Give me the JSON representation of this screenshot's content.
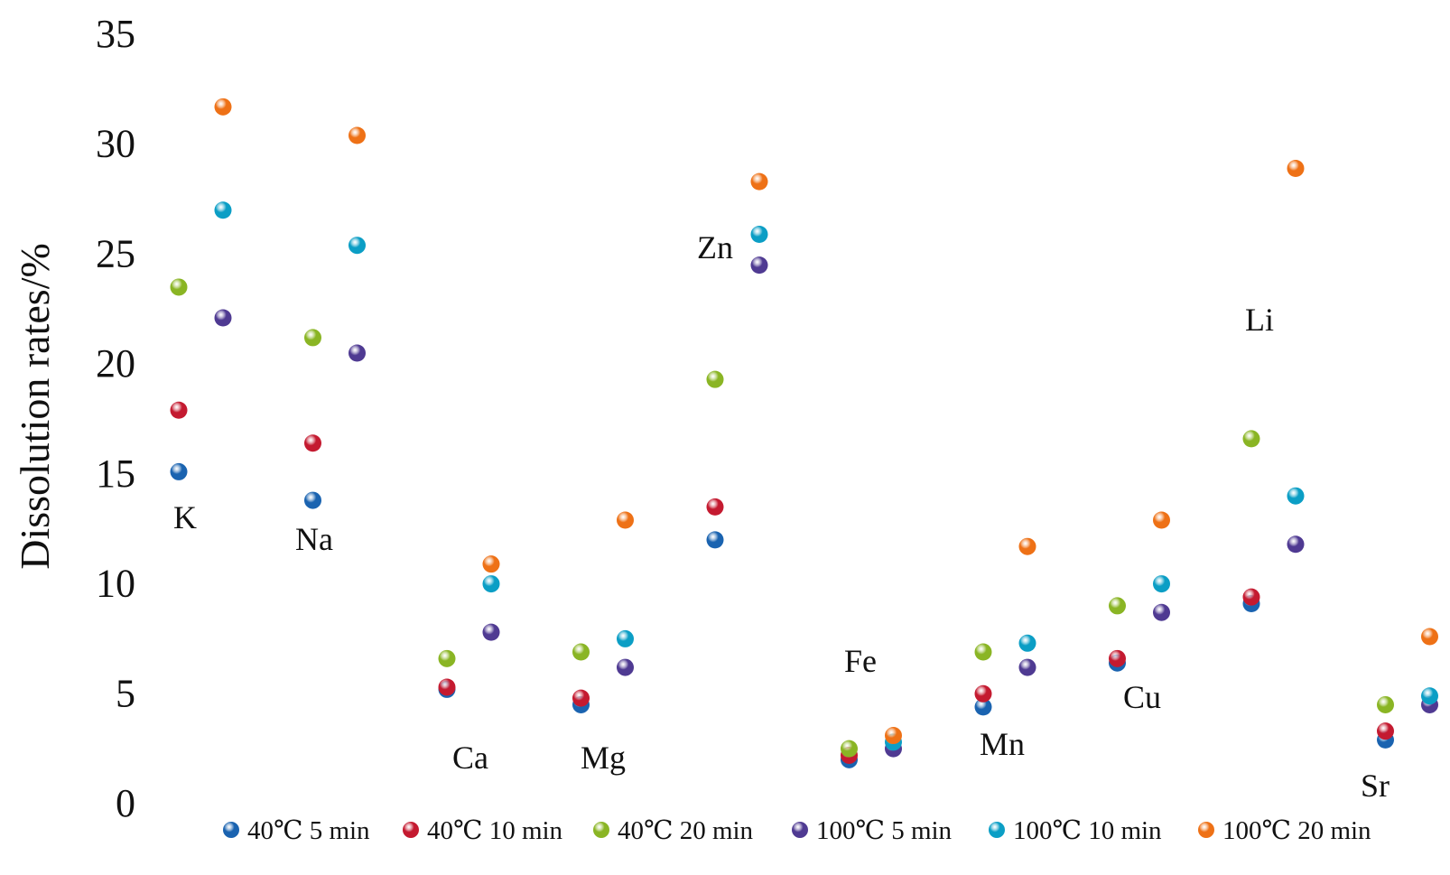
{
  "chart_data": {
    "type": "scatter",
    "title": "",
    "xlabel": "",
    "ylabel": "Dissolution rates/%",
    "ylim": [
      0,
      35
    ],
    "yticks": [
      "0",
      "5",
      "10",
      "15",
      "20",
      "25",
      "30",
      "35"
    ],
    "grid": false,
    "legend_position": "bottom",
    "elements": [
      "K",
      "Na",
      "Ca",
      "Mg",
      "Zn",
      "Fe",
      "Mn",
      "Cu",
      "Li",
      "Sr"
    ],
    "series": [
      {
        "name": "40℃ 5 min",
        "color": "#1a63b0",
        "values": [
          15.1,
          13.8,
          5.2,
          4.5,
          12.0,
          2.0,
          4.4,
          6.4,
          9.1,
          2.9
        ]
      },
      {
        "name": "40℃ 10 min",
        "color": "#c41a30",
        "values": [
          17.9,
          16.4,
          5.3,
          4.8,
          13.5,
          2.2,
          5.0,
          6.6,
          9.4,
          3.3
        ]
      },
      {
        "name": "40℃ 20 min",
        "color": "#8ab524",
        "values": [
          23.5,
          21.2,
          6.6,
          6.9,
          19.3,
          2.5,
          6.9,
          9.0,
          16.6,
          4.5
        ]
      },
      {
        "name": "100℃ 5 min",
        "color": "#4f3a92",
        "values": [
          22.1,
          20.5,
          7.8,
          6.2,
          24.5,
          2.5,
          6.2,
          8.7,
          11.8,
          4.5
        ]
      },
      {
        "name": "100℃ 10 min",
        "color": "#0b9ec5",
        "values": [
          27.0,
          25.4,
          10.0,
          7.5,
          25.9,
          2.8,
          7.3,
          10.0,
          14.0,
          4.9
        ]
      },
      {
        "name": "100℃ 20 min",
        "color": "#ee7116",
        "values": [
          31.7,
          30.4,
          10.9,
          12.9,
          28.3,
          3.1,
          11.7,
          12.9,
          28.9,
          7.6
        ]
      }
    ]
  }
}
